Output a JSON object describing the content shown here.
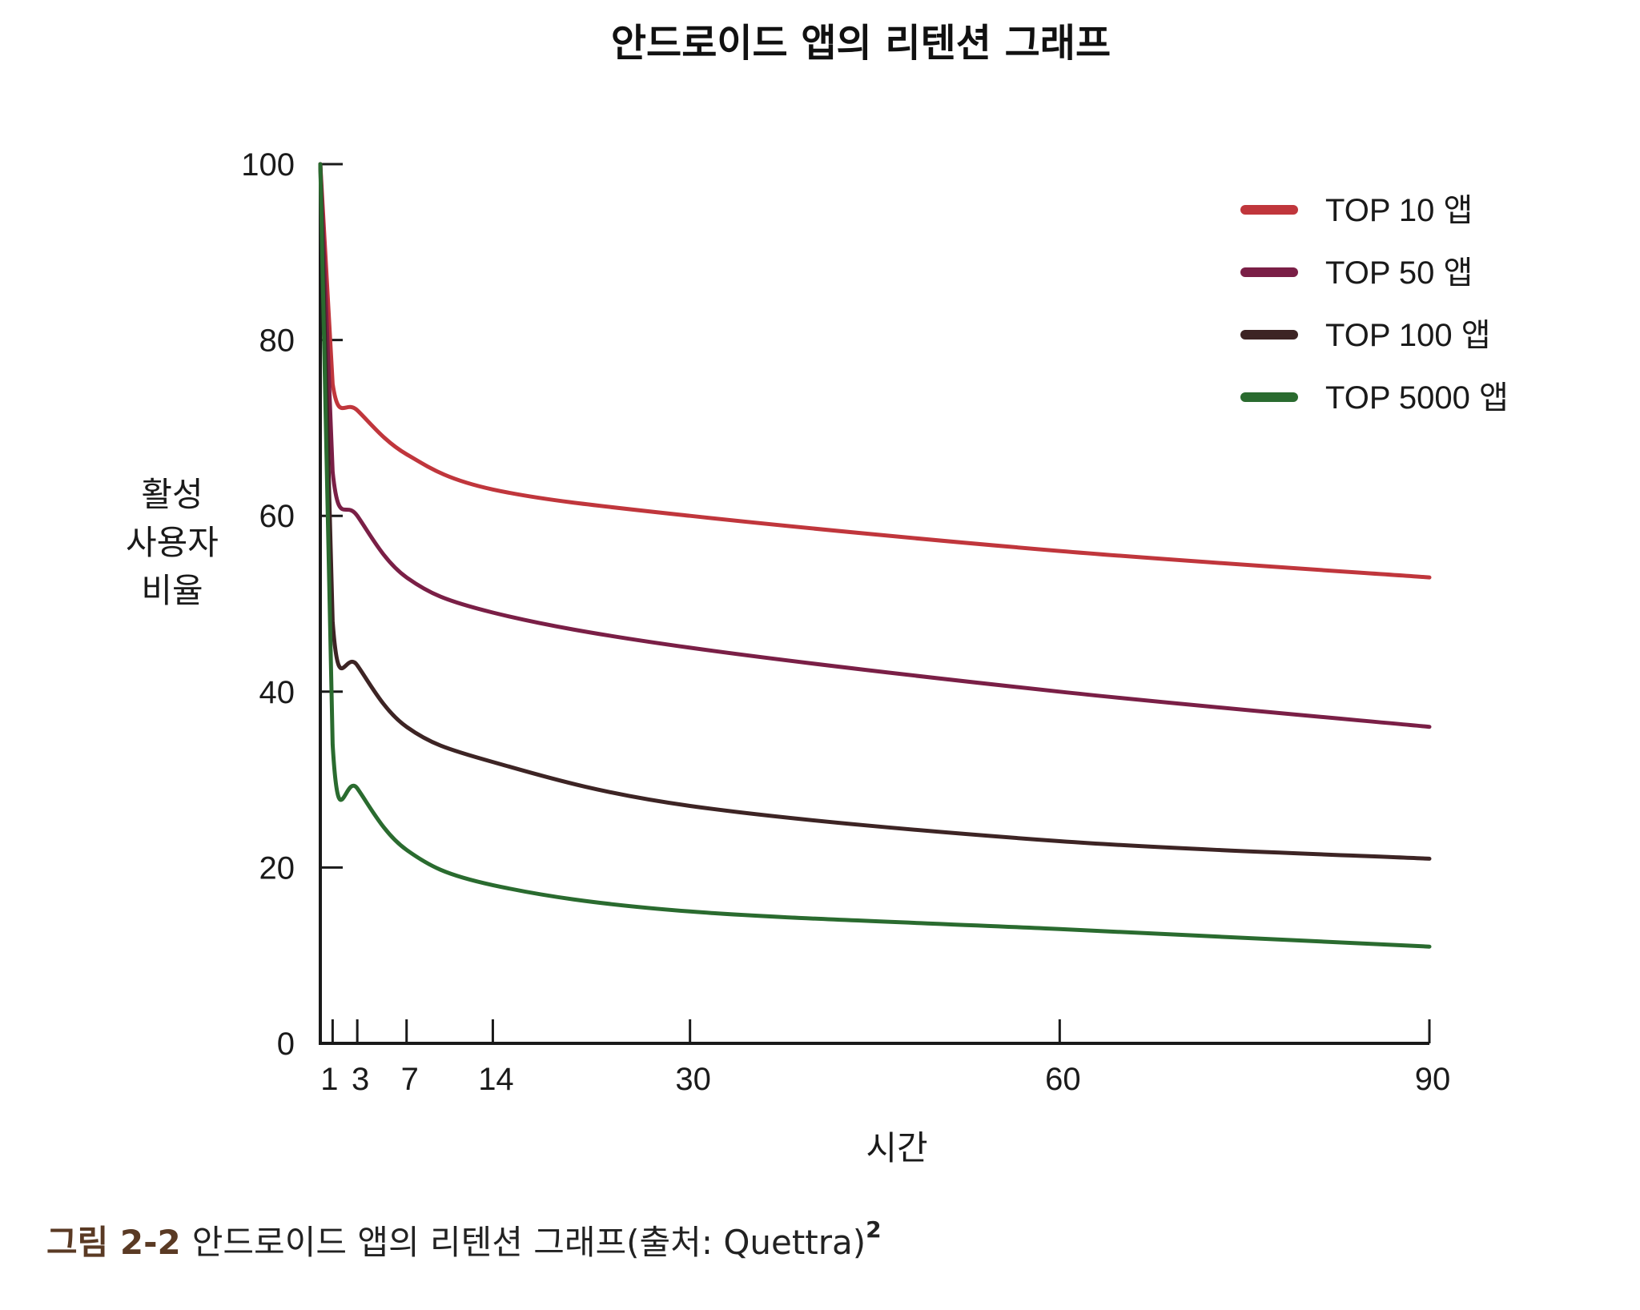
{
  "chart_data": {
    "type": "line",
    "title": "안드로이드 앱의 리텐션 그래프",
    "xlabel": "시간",
    "ylabel_lines": [
      "활성",
      "사용자",
      "비율"
    ],
    "xlim": [
      0,
      90
    ],
    "ylim": [
      0,
      100
    ],
    "x_ticks": [
      1,
      3,
      7,
      14,
      30,
      60,
      90
    ],
    "x_tick_labels": [
      "1",
      "3",
      "7",
      "14",
      "30",
      "60",
      "90"
    ],
    "y_ticks": [
      0,
      20,
      40,
      60,
      80,
      100
    ],
    "y_tick_labels": [
      "0",
      "20",
      "40",
      "60",
      "80",
      "100"
    ],
    "grid": false,
    "legend_position": "top-right",
    "x": [
      0,
      1,
      3,
      7,
      14,
      30,
      60,
      90
    ],
    "series": [
      {
        "name": "TOP 10 앱",
        "color": "#c0363c",
        "values": [
          100,
          75,
          72,
          67,
          63,
          60,
          56,
          53
        ]
      },
      {
        "name": "TOP 50 앱",
        "color": "#7a1f46",
        "values": [
          100,
          65,
          60,
          53,
          49,
          45,
          40,
          36
        ]
      },
      {
        "name": "TOP 100 앱",
        "color": "#3d2424",
        "values": [
          100,
          48,
          43,
          36,
          32,
          27,
          23,
          21
        ]
      },
      {
        "name": "TOP 5000 앱",
        "color": "#2a6b2f",
        "values": [
          100,
          34,
          29,
          22,
          18,
          15,
          13,
          11
        ]
      }
    ]
  },
  "caption": {
    "label": "그림 2-2",
    "text": "안드로이드 앱의 리텐션 그래프(출처: Quettra)",
    "footnote": "2"
  }
}
